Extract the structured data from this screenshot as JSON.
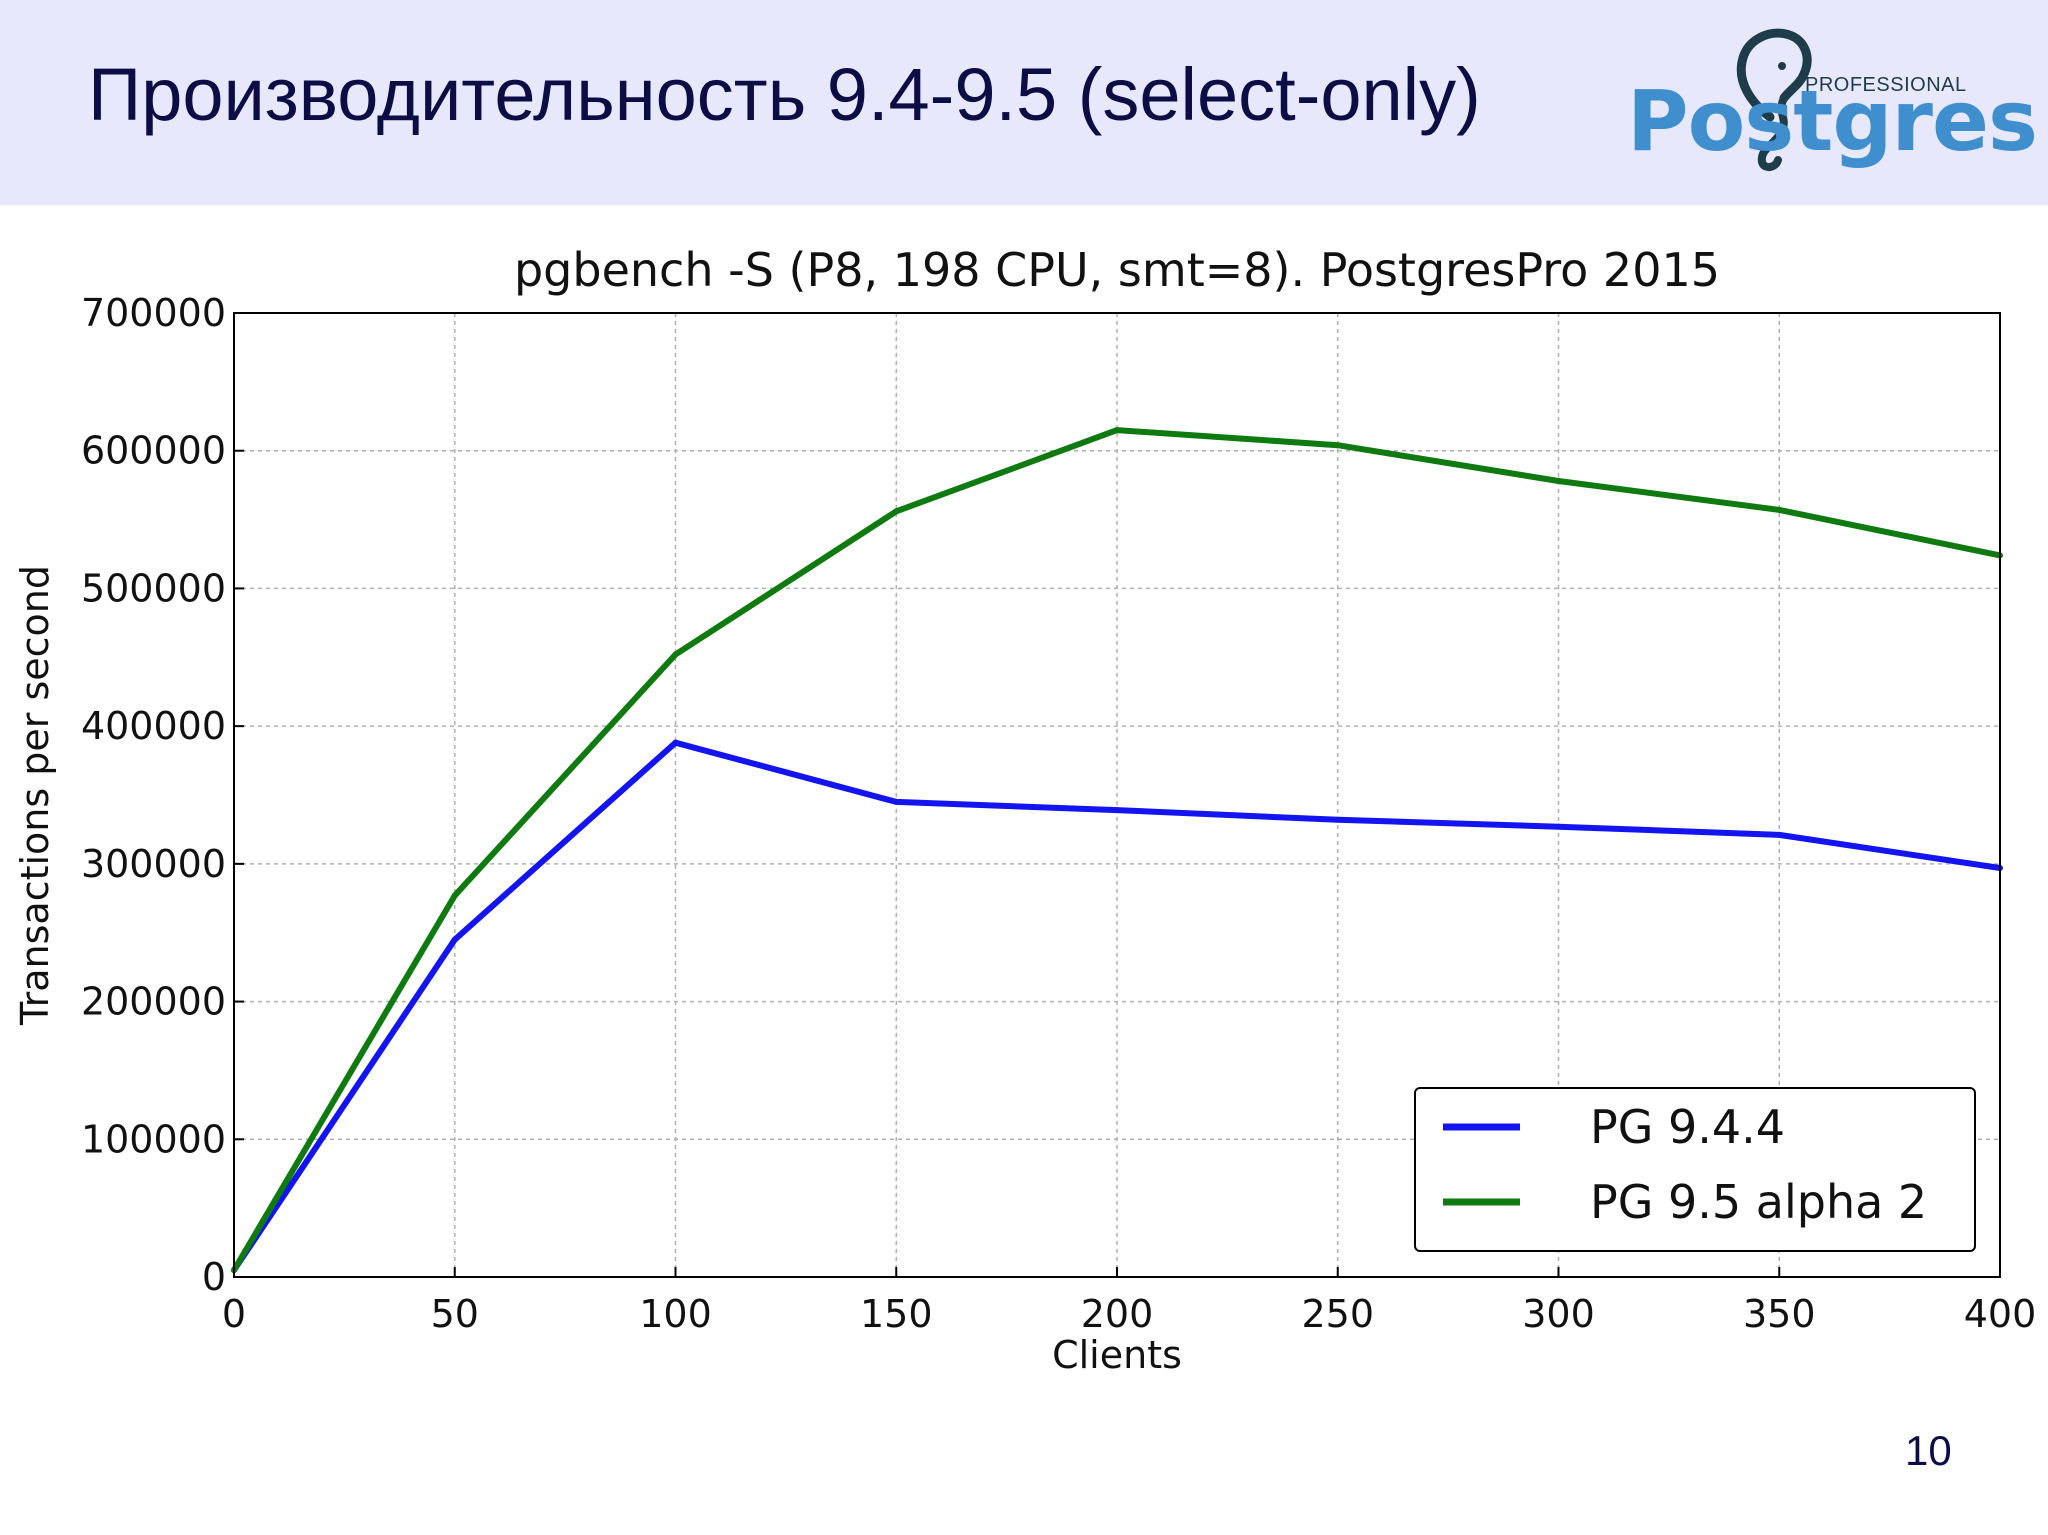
{
  "slide": {
    "title": "Производительность 9.4-9.5 (select-only)",
    "page_number": "10"
  },
  "logo": {
    "wordmark": "Postgres",
    "professional": "PROFESSIONAL",
    "icon": "elephant-icon",
    "colors": {
      "wordmark": "#3f8fcf",
      "elephant": "#1e3c4a"
    }
  },
  "colors": {
    "header_background": "#e8e8fc",
    "title_text": "#0d0d45",
    "series_blue": "#1414f0",
    "series_green": "#0f7a0f"
  },
  "chart_data": {
    "type": "line",
    "title": "pgbench -S (P8, 198 CPU, smt=8). PostgresPro 2015",
    "xlabel": "Clients",
    "ylabel": "Transactions per second",
    "xlim": [
      0,
      400
    ],
    "ylim": [
      0,
      700000
    ],
    "x_ticks": [
      "0",
      "50",
      "100",
      "150",
      "200",
      "250",
      "300",
      "350",
      "400"
    ],
    "y_ticks": [
      "0",
      "100000",
      "200000",
      "300000",
      "400000",
      "500000",
      "600000",
      "700000"
    ],
    "grid": true,
    "legend_position": "lower-right",
    "x": [
      0,
      50,
      100,
      150,
      200,
      250,
      300,
      350,
      400
    ],
    "series": [
      {
        "name": "PG 9.4.4",
        "color": "#1414f0",
        "values": [
          5000,
          245000,
          388000,
          345000,
          339000,
          332000,
          327000,
          321000,
          297000
        ]
      },
      {
        "name": "PG 9.5 alpha 2",
        "color": "#0f7a0f",
        "values": [
          5000,
          277000,
          452000,
          556000,
          615000,
          604000,
          578000,
          557000,
          524000
        ]
      }
    ]
  }
}
